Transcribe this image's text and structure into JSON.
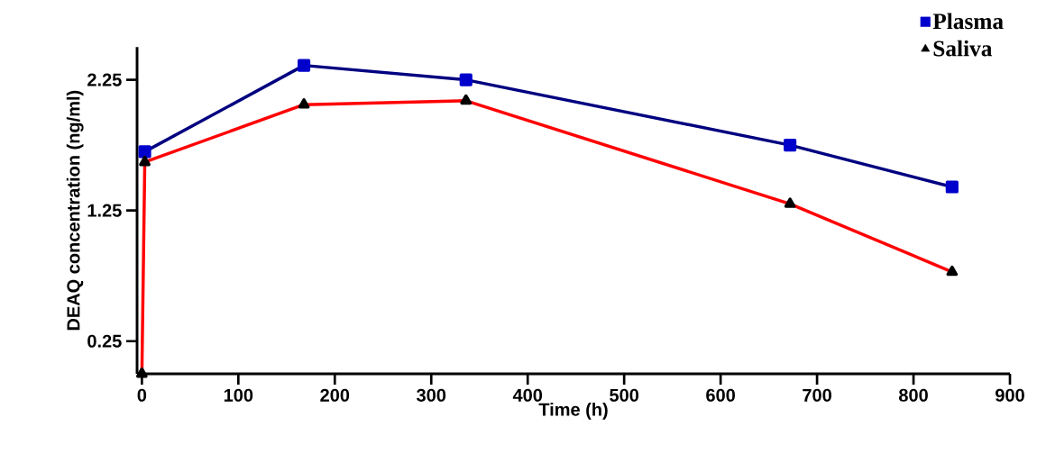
{
  "chart_data": {
    "type": "line",
    "xlabel": "Time (h)",
    "ylabel": "DEAQ concentration (ng/ml)",
    "xlim": [
      -5,
      900
    ],
    "ylim": [
      0,
      2.5
    ],
    "xticks": [
      0,
      100,
      200,
      300,
      400,
      500,
      600,
      700,
      800,
      900
    ],
    "yticks": [
      0.25,
      1.25,
      2.25
    ],
    "grid": false,
    "legend": "top right",
    "series": [
      {
        "name": "Plasma",
        "color": "#000080",
        "marker": "square",
        "colors": [
          "#0000cc",
          "#0000cc",
          "#0000cc",
          "#0000cc",
          "#0000cc"
        ],
        "x": [
          3,
          168,
          336,
          672,
          840
        ],
        "values": [
          1.7,
          2.36,
          2.25,
          1.75,
          1.43
        ]
      },
      {
        "name": "Saliva",
        "color": "#ff0000",
        "marker": "triangle",
        "colors": [
          "#000000",
          "#000000",
          "#000000",
          "#000000",
          "#000000",
          "#000000"
        ],
        "x": [
          0,
          3,
          168,
          336,
          672,
          840
        ],
        "values": [
          0.0,
          1.62,
          2.06,
          2.09,
          1.3,
          0.78
        ]
      }
    ]
  }
}
